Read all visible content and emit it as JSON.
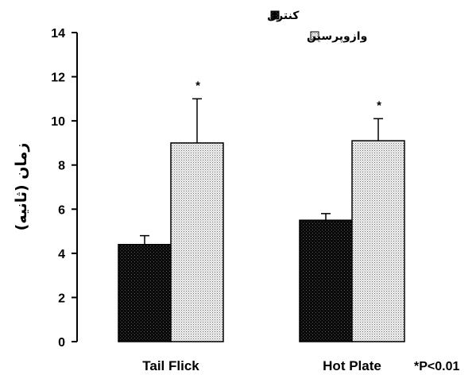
{
  "chart_data": {
    "type": "bar",
    "categories": [
      "Tail Flick",
      "Hot Plate"
    ],
    "series": [
      {
        "name": "کنترل",
        "values": [
          4.4,
          5.5
        ],
        "errors": [
          0.4,
          0.3
        ],
        "significance": [
          "",
          ""
        ],
        "color": "#1a1a1a"
      },
      {
        "name": "وازوپرسین",
        "values": [
          9.0,
          9.1
        ],
        "errors": [
          2.0,
          1.0
        ],
        "significance": [
          "*",
          "*"
        ],
        "color": "#d9d9d9"
      }
    ],
    "ylabel": "زمان (ثانیه)",
    "xlabel": "",
    "ylim": [
      0,
      14
    ],
    "yticks": [
      0,
      2,
      4,
      6,
      8,
      10,
      12,
      14
    ],
    "grid": false,
    "legend_position": "top-right",
    "annotations": [
      "*P<0.01"
    ]
  }
}
